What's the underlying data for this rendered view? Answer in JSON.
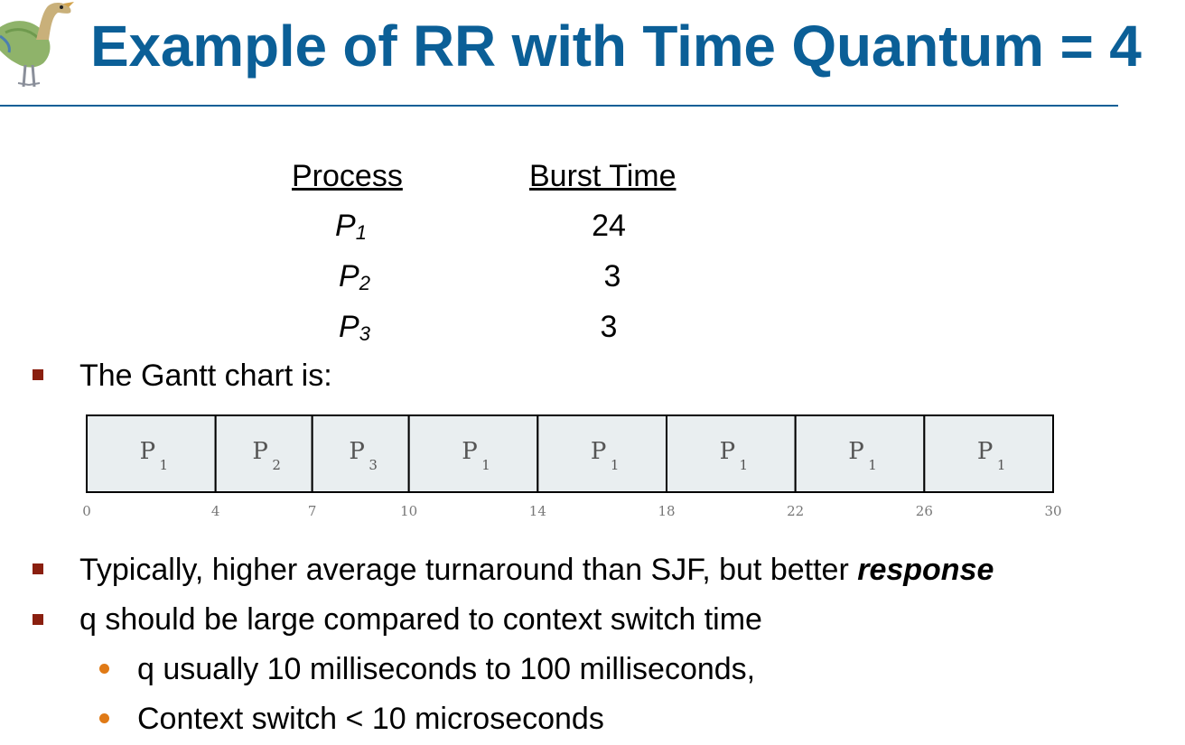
{
  "slide": {
    "title": "Example of RR with Time Quantum = 4"
  },
  "process_table": {
    "headers": {
      "process": "Process",
      "burst_time": "Burst Time"
    },
    "rows": [
      {
        "name": "P",
        "sub": "1",
        "burst": "24"
      },
      {
        "name": "P",
        "sub": "2",
        "burst": "3"
      },
      {
        "name": "P",
        "sub": "3",
        "burst": "3"
      }
    ]
  },
  "bullets": {
    "gantt_intro": "The Gantt chart is:",
    "turnaround_pre": "Typically, higher average turnaround than SJF, but better ",
    "turnaround_em": "response",
    "q_large": "q should be large compared to context switch time",
    "sub1": "q usually 10 milliseconds  to 100 milliseconds,",
    "sub2": "Context switch < 10 microseconds"
  },
  "chart_data": {
    "type": "gantt",
    "segments": [
      {
        "label": "P",
        "sub": "1",
        "start": 0,
        "end": 4
      },
      {
        "label": "P",
        "sub": "2",
        "start": 4,
        "end": 7
      },
      {
        "label": "P",
        "sub": "3",
        "start": 7,
        "end": 10
      },
      {
        "label": "P",
        "sub": "1",
        "start": 10,
        "end": 14
      },
      {
        "label": "P",
        "sub": "1",
        "start": 14,
        "end": 18
      },
      {
        "label": "P",
        "sub": "1",
        "start": 18,
        "end": 22
      },
      {
        "label": "P",
        "sub": "1",
        "start": 22,
        "end": 26
      },
      {
        "label": "P",
        "sub": "1",
        "start": 26,
        "end": 30
      }
    ],
    "ticks": [
      "0",
      "4",
      "7",
      "10",
      "14",
      "18",
      "22",
      "26",
      "30"
    ],
    "xlim": [
      0,
      30
    ],
    "colors": {
      "fill": "#e9eef0",
      "border": "#000000",
      "label": "#555555"
    }
  },
  "colors": {
    "title": "#0b5f97",
    "bullet_square": "#8a1f0f",
    "bullet_dot": "#e07a16"
  }
}
